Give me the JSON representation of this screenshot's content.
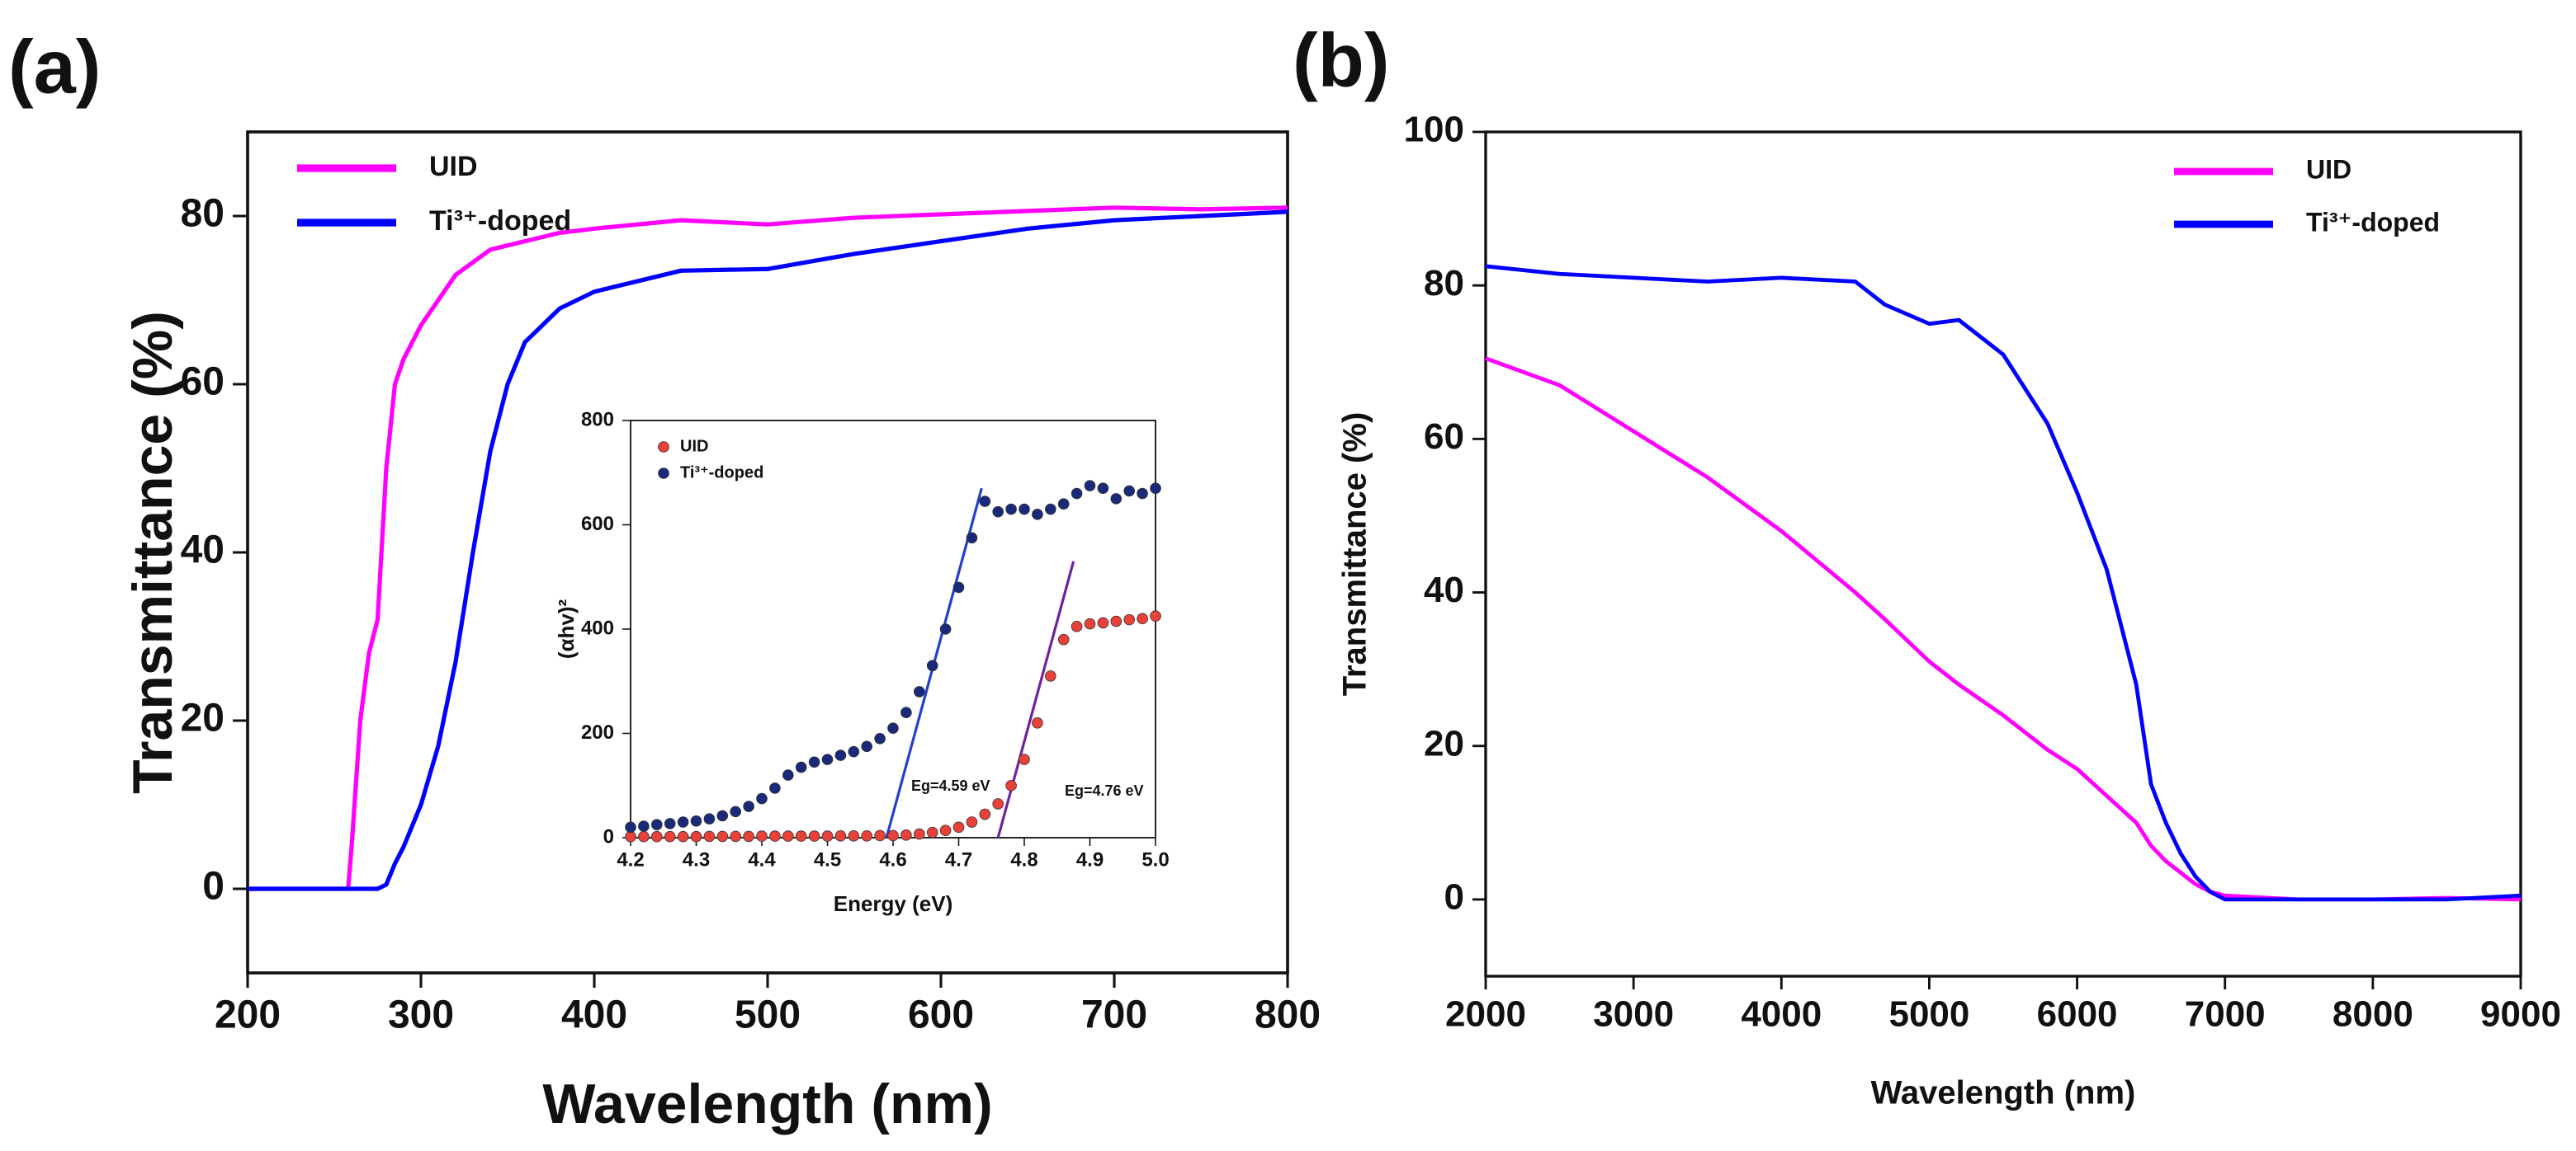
{
  "chart_data": [
    {
      "type": "line",
      "panel_label": "(a)",
      "xlabel": "Wavelength (nm)",
      "ylabel": "Transmittance (%)",
      "xlim": [
        200,
        800
      ],
      "xticks": [
        200,
        300,
        400,
        500,
        600,
        700,
        800
      ],
      "ylim": [
        -10,
        90
      ],
      "yticks": [
        0,
        20,
        40,
        60,
        80
      ],
      "legend": "upper left",
      "x": [
        200,
        250,
        258,
        260,
        265,
        270,
        275,
        280,
        285,
        290,
        300,
        310,
        320,
        330,
        340,
        350,
        360,
        380,
        400,
        450,
        500,
        550,
        600,
        650,
        700,
        750,
        800
      ],
      "series": [
        {
          "name": "UID",
          "color": "#ff00ff",
          "values": [
            0,
            0,
            0,
            5,
            20,
            28,
            32,
            50,
            60,
            63,
            67,
            70,
            73,
            74.5,
            76,
            76.5,
            77,
            78,
            78.5,
            79.5,
            79,
            79.8,
            80.2,
            80.6,
            81,
            80.8,
            81
          ]
        },
        {
          "name": "Ti³⁺-doped",
          "color": "#0000ff",
          "values": [
            0,
            0,
            0,
            0,
            0,
            0,
            0,
            0.5,
            3,
            5,
            10,
            17,
            27,
            40,
            52,
            60,
            65,
            69,
            71,
            73.5,
            73.7,
            75.5,
            77,
            78.5,
            79.5,
            80,
            80.5
          ]
        }
      ]
    },
    {
      "type": "scatter",
      "xlabel": "Energy (eV)",
      "ylabel": "(αhv)²",
      "xlim": [
        4.2,
        5.0
      ],
      "xticks": [
        4.2,
        4.3,
        4.4,
        4.5,
        4.6,
        4.7,
        4.8,
        4.9,
        {
          "value": 5.0,
          "label": "5.0"
        }
      ],
      "ylim": [
        0,
        800
      ],
      "yticks": [
        0,
        200,
        400,
        600,
        800
      ],
      "legend": "upper left",
      "x": [
        4.2,
        4.22,
        4.24,
        4.26,
        4.28,
        4.3,
        4.32,
        4.34,
        4.36,
        4.38,
        4.4,
        4.42,
        4.44,
        4.46,
        4.48,
        4.5,
        4.52,
        4.54,
        4.56,
        4.58,
        4.6,
        4.62,
        4.64,
        4.66,
        4.68,
        4.7,
        4.72,
        4.74,
        4.76,
        4.78,
        4.8,
        4.82,
        4.84,
        4.86,
        4.88,
        4.9,
        4.92,
        4.94,
        4.96,
        4.98,
        5.0
      ],
      "series": [
        {
          "name": "UID",
          "color": "#e8413a",
          "values": [
            2,
            2,
            2,
            2,
            2,
            2,
            2.5,
            2.5,
            2.5,
            2.5,
            3,
            3,
            3,
            3,
            3,
            3,
            3.5,
            3.5,
            3.5,
            4,
            4,
            5,
            7,
            10,
            14,
            20,
            30,
            45,
            65,
            100,
            150,
            220,
            310,
            380,
            405,
            410,
            412,
            415,
            418,
            420,
            425
          ]
        },
        {
          "name": "Ti³⁺-doped",
          "color": "#1a2a7a",
          "values": [
            20,
            22,
            25,
            27,
            30,
            32,
            36,
            42,
            50,
            60,
            75,
            95,
            120,
            135,
            145,
            150,
            158,
            165,
            175,
            190,
            210,
            240,
            280,
            330,
            400,
            480,
            575,
            645,
            625,
            630,
            630,
            620,
            630,
            640,
            660,
            675,
            670,
            650,
            665,
            660,
            670
          ]
        }
      ],
      "fit_lines": [
        {
          "color": "#2040d0",
          "x": [
            4.59,
            4.735
          ],
          "y": [
            0,
            670
          ]
        },
        {
          "color": "#7020a0",
          "x": [
            4.76,
            4.875
          ],
          "y": [
            0,
            530
          ]
        }
      ],
      "annotations": [
        "Eg=4.59 eV",
        "Eg=4.76 eV"
      ]
    },
    {
      "type": "line",
      "panel_label": "(b)",
      "xlabel": "Wavelength (nm)",
      "ylabel": "Transmittance (%)",
      "xlim": [
        2000,
        9000
      ],
      "xticks": [
        2000,
        3000,
        4000,
        5000,
        6000,
        7000,
        8000,
        9000
      ],
      "ylim": [
        -10,
        100
      ],
      "yticks": [
        0,
        20,
        40,
        60,
        80,
        100
      ],
      "legend": "upper right",
      "x": [
        2000,
        2500,
        3000,
        3500,
        4000,
        4500,
        4700,
        5000,
        5200,
        5500,
        5800,
        6000,
        6200,
        6400,
        6500,
        6600,
        6700,
        6800,
        6900,
        7000,
        7500,
        8000,
        8500,
        9000
      ],
      "series": [
        {
          "name": "UID",
          "color": "#ff00ff",
          "values": [
            70.5,
            67,
            61,
            55,
            48,
            40,
            36.5,
            31,
            28,
            24,
            19.5,
            17,
            13.5,
            10,
            7,
            5,
            3.5,
            2,
            1,
            0.5,
            0,
            0,
            0.2,
            0
          ]
        },
        {
          "name": "Ti³⁺-doped",
          "color": "#0000ff",
          "values": [
            82.5,
            81.5,
            81,
            80.5,
            81,
            80.5,
            77.5,
            75,
            75.5,
            71,
            62,
            53,
            43,
            28,
            15,
            10,
            6,
            3,
            1,
            0,
            0,
            0,
            0,
            0.5
          ]
        }
      ]
    }
  ]
}
